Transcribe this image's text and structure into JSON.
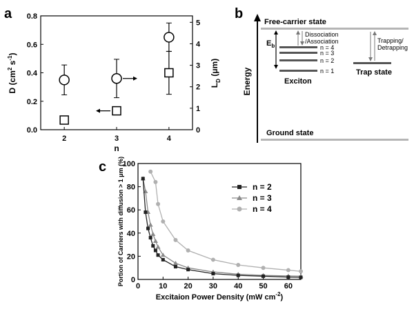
{
  "panels": {
    "a": {
      "letter": "a",
      "chart_data": {
        "type": "scatter",
        "xlabel": "n",
        "ylabel": "D (cm² s⁻¹)",
        "y2label": "Lᴅ (μm)",
        "ylabel_parts": {
          "main": "D (cm",
          "sup1": "2",
          "mid": " s",
          "sup2": "-1",
          "end": ")"
        },
        "y2label_parts": {
          "main": "L",
          "sub": "D",
          "end": " (μm)"
        },
        "categories": [
          "2",
          "3",
          "4"
        ],
        "xlim": [
          1.55,
          4.45
        ],
        "ylim": [
          0,
          0.8
        ],
        "y2lim": [
          0,
          5.3
        ],
        "yticks": [
          "0.0",
          "0.2",
          "0.4",
          "0.6",
          "0.8"
        ],
        "y2ticks": [
          "0",
          "1",
          "2",
          "3",
          "4",
          "5"
        ],
        "series": [
          {
            "marker": "circle",
            "axis": "left",
            "x": [
              2,
              3,
              4
            ],
            "y": [
              0.35,
              0.36,
              0.65
            ],
            "yerr": [
              0.105,
              0.135,
              0.1
            ]
          },
          {
            "marker": "square",
            "axis": "right",
            "x": [
              2,
              3,
              4
            ],
            "y": [
              0.45,
              0.88,
              2.65
            ],
            "yerr": [
              0.12,
              0.12,
              1.0
            ]
          }
        ],
        "arrows": [
          {
            "series_marker": "circle",
            "x": 3,
            "y": 0.36,
            "direction": "right"
          },
          {
            "series_marker": "square",
            "x": 3,
            "y": 0.88,
            "direction": "left"
          }
        ]
      }
    },
    "b": {
      "letter": "b",
      "axis_label": "Energy",
      "free_carrier": "Free-carrier state",
      "ground": "Ground state",
      "eb": "E",
      "eb_sub": "b",
      "dissociation": "Dissociation",
      "association": "/Association",
      "trapping": "Trapping/",
      "detrapping": "Detrapping",
      "levels": [
        "n = 4",
        "n = 3",
        "n = 2",
        "n = 1"
      ],
      "exciton": "Exciton",
      "trap_state": "Trap state"
    },
    "c": {
      "letter": "c",
      "chart_data": {
        "type": "line",
        "xlabel": "Excitaion Power Density  (mW cm",
        "xlabel_sup": "-2",
        "xlabel_end": ")",
        "ylabel": "Portion of Carriers with diffusion > 1 μm (%)",
        "xlim": [
          0,
          65
        ],
        "ylim": [
          0,
          100
        ],
        "xticks": [
          "0",
          "10",
          "20",
          "30",
          "40",
          "50",
          "60"
        ],
        "yticks": [
          "0",
          "20",
          "40",
          "60",
          "80",
          "100"
        ],
        "series": [
          {
            "name": "n = 2",
            "color": "#222222",
            "marker": "square",
            "x": [
              2,
              3,
              4,
              5,
              6,
              7,
              8,
              10,
              15,
              20,
              30,
              40,
              50,
              60,
              65
            ],
            "y": [
              87,
              58,
              44,
              36,
              29,
              25,
              21,
              17,
              11,
              8.5,
              5,
              3.5,
              2.8,
              2,
              1.8
            ]
          },
          {
            "name": "n = 3",
            "color": "#8a8a8a",
            "marker": "triangle",
            "x": [
              2,
              3,
              4,
              5,
              6,
              7,
              8,
              10,
              15,
              20,
              30,
              40,
              50,
              60,
              65
            ],
            "y": [
              87,
              76,
              58,
              47,
              39,
              33,
              28,
              21,
              14,
              10,
              6.5,
              4.5,
              3.5,
              3,
              2.8
            ]
          },
          {
            "name": "n = 4",
            "color": "#b0b0b0",
            "marker": "circle",
            "x": [
              5,
              7,
              8,
              10,
              15,
              20,
              30,
              40,
              50,
              60,
              65
            ],
            "y": [
              93,
              84,
              65,
              50,
              34,
              25,
              17,
              12.5,
              10,
              8,
              7
            ]
          }
        ],
        "legend_position": "top-right"
      }
    }
  }
}
